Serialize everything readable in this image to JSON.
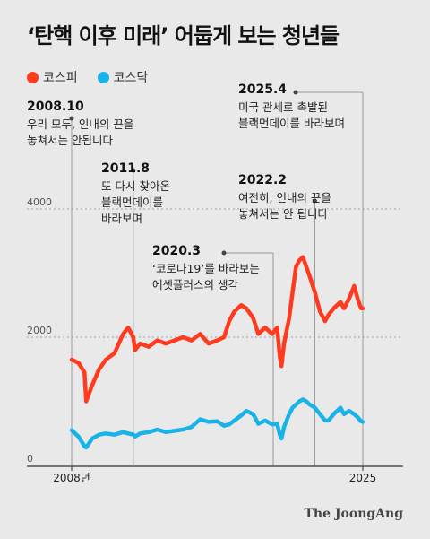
{
  "title": "‘탄핵 이후 미래’ 어둡게 보는 청년들",
  "credit": "The JoongAng",
  "colors": {
    "kospi": "#ff3b1f",
    "kosdaq": "#1ab3e8",
    "grid": "#888888",
    "axis": "#333333",
    "annotation_line": "#999999"
  },
  "chart_data": {
    "type": "line",
    "title": "‘탄핵 이후 미래’ 어둡게 보는 청년들",
    "xlabel": "",
    "ylabel": "",
    "xlim": [
      2008.0,
      2025.0
    ],
    "ylim": [
      0,
      4000
    ],
    "yticks": [
      0,
      2000,
      4000
    ],
    "yticklabels": [
      "0",
      "2000",
      "4000"
    ],
    "xticklabels": [
      {
        "x": 2008.0,
        "label": "2008년"
      },
      {
        "x": 2025.0,
        "label": "2025"
      }
    ],
    "grid": "dashed horizontal at 2000 and 4000",
    "legend": "top-left",
    "series": [
      {
        "name": "코스피",
        "color": "#ff3b1f",
        "x": [
          2008.0,
          2008.4,
          2008.75,
          2008.85,
          2009.2,
          2009.6,
          2010.0,
          2010.5,
          2011.0,
          2011.3,
          2011.6,
          2011.7,
          2012.0,
          2012.5,
          2013.0,
          2013.5,
          2014.0,
          2014.5,
          2015.0,
          2015.5,
          2016.0,
          2016.5,
          2016.9,
          2017.2,
          2017.5,
          2017.9,
          2018.2,
          2018.6,
          2018.9,
          2019.3,
          2019.7,
          2020.0,
          2020.15,
          2020.25,
          2020.4,
          2020.7,
          2020.9,
          2021.1,
          2021.3,
          2021.5,
          2021.7,
          2021.9,
          2022.2,
          2022.5,
          2022.8,
          2023.0,
          2023.3,
          2023.7,
          2023.9,
          2024.2,
          2024.5,
          2024.7,
          2024.9,
          2025.0
        ],
        "y": [
          1650,
          1600,
          1450,
          1000,
          1250,
          1500,
          1650,
          1750,
          2050,
          2150,
          2000,
          1800,
          1900,
          1850,
          1950,
          1900,
          1950,
          2000,
          1950,
          2050,
          1900,
          1950,
          2000,
          2250,
          2400,
          2500,
          2450,
          2300,
          2050,
          2150,
          2050,
          2150,
          1700,
          1550,
          1900,
          2300,
          2700,
          3100,
          3200,
          3250,
          3100,
          2950,
          2700,
          2400,
          2250,
          2350,
          2450,
          2550,
          2450,
          2600,
          2800,
          2600,
          2450,
          2450
        ]
      },
      {
        "name": "코스닥",
        "color": "#1ab3e8",
        "x": [
          2008.0,
          2008.4,
          2008.75,
          2008.85,
          2009.2,
          2009.6,
          2010.0,
          2010.5,
          2011.0,
          2011.3,
          2011.6,
          2011.7,
          2012.0,
          2012.5,
          2013.0,
          2013.5,
          2014.0,
          2014.5,
          2015.0,
          2015.5,
          2016.0,
          2016.5,
          2016.9,
          2017.2,
          2017.5,
          2017.9,
          2018.2,
          2018.6,
          2018.9,
          2019.3,
          2019.7,
          2020.0,
          2020.15,
          2020.25,
          2020.4,
          2020.7,
          2020.9,
          2021.1,
          2021.3,
          2021.5,
          2021.7,
          2021.9,
          2022.2,
          2022.5,
          2022.8,
          2023.0,
          2023.3,
          2023.7,
          2023.9,
          2024.2,
          2024.5,
          2024.7,
          2024.9,
          2025.0
        ],
        "y": [
          550,
          450,
          300,
          280,
          420,
          480,
          500,
          480,
          520,
          500,
          480,
          450,
          500,
          520,
          560,
          520,
          540,
          560,
          600,
          720,
          680,
          690,
          620,
          640,
          700,
          780,
          850,
          800,
          650,
          700,
          640,
          650,
          480,
          420,
          600,
          800,
          900,
          950,
          1000,
          1030,
          1000,
          950,
          900,
          800,
          700,
          700,
          800,
          900,
          800,
          850,
          800,
          750,
          690,
          680
        ]
      }
    ],
    "annotations": [
      {
        "x": 2008.0,
        "date": "2008.10",
        "text": [
          "우리 모두, 인내의 끈을",
          "놓쳐서는 안됩니다"
        ]
      },
      {
        "x": 2011.6,
        "date": "2011.8",
        "text": [
          "또 다시 찾아온",
          "블랙먼데이를",
          "바라보며"
        ]
      },
      {
        "x": 2020.2,
        "date": "2020.3",
        "text": [
          "‘코로나19’를 바라보는",
          "에셋플러스의 생각"
        ]
      },
      {
        "x": 2022.2,
        "date": "2022.2",
        "text": [
          "여전히, 인내의 끈을",
          "놓쳐서는 안 됩니다"
        ]
      },
      {
        "x": 2025.0,
        "date": "2025.4",
        "text": [
          "미국 관세로 촉발된",
          "블랙먼데이를 바라보며"
        ]
      }
    ]
  }
}
